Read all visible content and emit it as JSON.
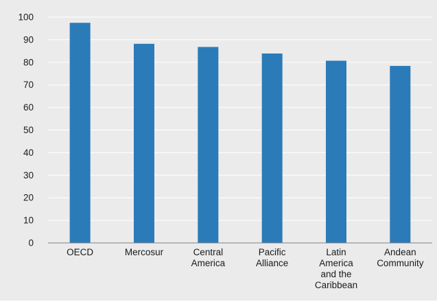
{
  "colors": {
    "background": "#ebebeb",
    "bar": "#2b7bb9",
    "gridline": "#ffffff",
    "axis": "#808080",
    "text": "#1a1a1a"
  },
  "chart_data": {
    "type": "bar",
    "title": "",
    "xlabel": "",
    "ylabel": "",
    "categories": [
      [
        "OECD"
      ],
      [
        "Mercosur"
      ],
      [
        "Central",
        "America"
      ],
      [
        "Pacific",
        "Alliance"
      ],
      [
        "Latin",
        "America",
        "and the",
        "Caribbean"
      ],
      [
        "Andean",
        "Community"
      ]
    ],
    "series": [
      {
        "values": [
          97.5,
          88.2,
          86.8,
          83.9,
          80.7,
          78.4
        ]
      }
    ],
    "ylim": [
      0,
      100
    ],
    "yticks": [
      0,
      10,
      20,
      30,
      40,
      50,
      60,
      70,
      80,
      90,
      100
    ],
    "grid": true,
    "legend": "none"
  }
}
